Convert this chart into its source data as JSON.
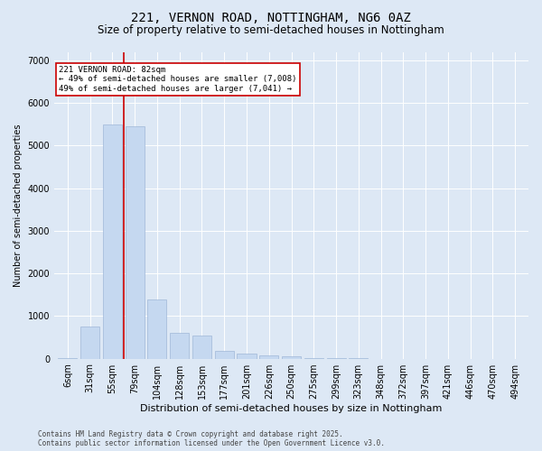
{
  "title": "221, VERNON ROAD, NOTTINGHAM, NG6 0AZ",
  "subtitle": "Size of property relative to semi-detached houses in Nottingham",
  "xlabel": "Distribution of semi-detached houses by size in Nottingham",
  "ylabel": "Number of semi-detached properties",
  "categories": [
    "6sqm",
    "31sqm",
    "55sqm",
    "79sqm",
    "104sqm",
    "128sqm",
    "153sqm",
    "177sqm",
    "201sqm",
    "226sqm",
    "250sqm",
    "275sqm",
    "299sqm",
    "323sqm",
    "348sqm",
    "372sqm",
    "397sqm",
    "421sqm",
    "446sqm",
    "470sqm",
    "494sqm"
  ],
  "values": [
    8,
    750,
    5500,
    5450,
    1380,
    600,
    540,
    190,
    110,
    70,
    55,
    8,
    4,
    2,
    1,
    1,
    0,
    0,
    0,
    0,
    0
  ],
  "bar_color": "#c5d8f0",
  "bar_edge_color": "#a0b8d8",
  "vline_x": 2.5,
  "vline_color": "#cc0000",
  "annotation_text": "221 VERNON ROAD: 82sqm\n← 49% of semi-detached houses are smaller (7,008)\n49% of semi-detached houses are larger (7,041) →",
  "annotation_box_color": "#ffffff",
  "annotation_box_edge": "#cc0000",
  "ylim": [
    0,
    7200
  ],
  "yticks": [
    0,
    1000,
    2000,
    3000,
    4000,
    5000,
    6000,
    7000
  ],
  "background_color": "#dde8f5",
  "plot_bg_color": "#dde8f5",
  "footer_line1": "Contains HM Land Registry data © Crown copyright and database right 2025.",
  "footer_line2": "Contains public sector information licensed under the Open Government Licence v3.0.",
  "title_fontsize": 10,
  "subtitle_fontsize": 8.5,
  "xlabel_fontsize": 8,
  "ylabel_fontsize": 7,
  "tick_fontsize": 7,
  "annotation_fontsize": 6.5,
  "footer_fontsize": 5.5
}
